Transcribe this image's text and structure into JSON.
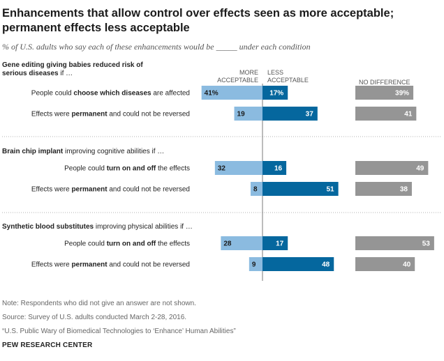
{
  "title": "Enhancements  that allow control over effects seen as more acceptable; permanent effects less acceptable",
  "subtitle": "% of U.S. adults who say each of these enhancements would be _____ under each condition",
  "footer": {
    "note": "Note: Respondents who did not give an answer are not shown.",
    "source": "Source: Survey of U.S. adults conducted March 2-28, 2016.",
    "report": "“U.S. Public Wary of Biomedical Technologies to ‘Enhance’ Human Abilities”",
    "brand": "PEW RESEARCH CENTER"
  },
  "colors": {
    "more": "#8bbbe0",
    "less": "#05679e",
    "no_difference": "#959595",
    "divider": "#b0b0b0",
    "axis": "#7a7a7a"
  },
  "chart_data": {
    "type": "bar",
    "orientation": "horizontal",
    "column_headers": {
      "more": [
        "MORE",
        "ACCEPTABLE"
      ],
      "less": [
        "LESS",
        "ACCEPTABLE"
      ],
      "no_difference": [
        "NO DIFFERENCE"
      ]
    },
    "groups": [
      {
        "title_parts": [
          {
            "text": "Gene editing giving babies reduced risk of",
            "bold": true
          },
          {
            "text": "serious diseases",
            "bold": true,
            "newline": true
          },
          {
            "text": " if …",
            "bold": false
          }
        ],
        "rows": [
          {
            "label_parts": [
              {
                "text": "People could ",
                "bold": false
              },
              {
                "text": "choose which diseases",
                "bold": true
              },
              {
                "text": " are affected",
                "bold": false
              }
            ],
            "more": 41,
            "less": 17,
            "no_difference": 39,
            "more_label": "41%",
            "less_label": "17%",
            "no_difference_label": "39%"
          },
          {
            "label_parts": [
              {
                "text": "Effects were ",
                "bold": false
              },
              {
                "text": "permanent",
                "bold": true
              },
              {
                "text": " and could not be reversed",
                "bold": false
              }
            ],
            "more": 19,
            "less": 37,
            "no_difference": 41,
            "more_label": "19",
            "less_label": "37",
            "no_difference_label": "41"
          }
        ]
      },
      {
        "title_parts": [
          {
            "text": "Brain chip implant",
            "bold": true
          },
          {
            "text": " improving cognitive abilities if …",
            "bold": false
          }
        ],
        "rows": [
          {
            "label_parts": [
              {
                "text": "People could ",
                "bold": false
              },
              {
                "text": "turn on and off",
                "bold": true
              },
              {
                "text": " the effects",
                "bold": false
              }
            ],
            "more": 32,
            "less": 16,
            "no_difference": 49,
            "more_label": "32",
            "less_label": "16",
            "no_difference_label": "49"
          },
          {
            "label_parts": [
              {
                "text": "Effects were ",
                "bold": false
              },
              {
                "text": "permanent",
                "bold": true
              },
              {
                "text": " and could not be reversed",
                "bold": false
              }
            ],
            "more": 8,
            "less": 51,
            "no_difference": 38,
            "more_label": "8",
            "less_label": "51",
            "no_difference_label": "38"
          }
        ]
      },
      {
        "title_parts": [
          {
            "text": "Synthetic blood substitutes",
            "bold": true
          },
          {
            "text": " improving physical abilities if …",
            "bold": false
          }
        ],
        "rows": [
          {
            "label_parts": [
              {
                "text": "People could ",
                "bold": false
              },
              {
                "text": "turn on and off",
                "bold": true
              },
              {
                "text": " the effects",
                "bold": false
              }
            ],
            "more": 28,
            "less": 17,
            "no_difference": 53,
            "more_label": "28",
            "less_label": "17",
            "no_difference_label": "53"
          },
          {
            "label_parts": [
              {
                "text": "Effects were ",
                "bold": false
              },
              {
                "text": "permanent",
                "bold": true
              },
              {
                "text": " and could not be reversed",
                "bold": false
              }
            ],
            "more": 9,
            "less": 48,
            "no_difference": 40,
            "more_label": "9",
            "less_label": "48",
            "no_difference_label": "40"
          }
        ]
      }
    ]
  }
}
